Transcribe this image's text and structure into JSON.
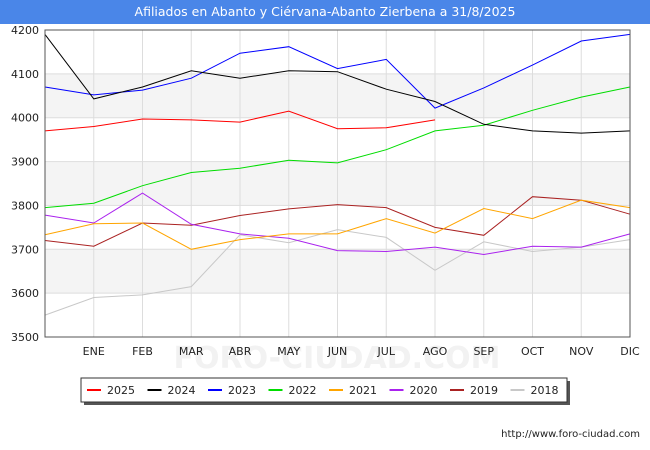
{
  "title": "Afiliados en Abanto y Ciérvana-Abanto Zierbena a 31/8/2025",
  "footer": "http://www.foro-ciudad.com",
  "watermark": "FORO-CIUDAD.COM",
  "chart_data": {
    "type": "line",
    "title": "Afiliados en Abanto y Ciérvana-Abanto Zierbena a 31/8/2025",
    "xlabel": "",
    "ylabel": "",
    "x_ticks": [
      "",
      "ENE",
      "FEB",
      "MAR",
      "ABR",
      "MAY",
      "JUN",
      "JUL",
      "AGO",
      "SEP",
      "OCT",
      "NOV",
      "DIC"
    ],
    "y_ticks": [
      3500,
      3600,
      3700,
      3800,
      3900,
      4000,
      4100,
      4200
    ],
    "ylim": [
      3500,
      4200
    ],
    "grid": true,
    "legend_position": "bottom",
    "series": [
      {
        "name": "2025",
        "color": "#ff0000",
        "values": [
          3970,
          3980,
          3997,
          3995,
          3990,
          4015,
          3975,
          3977,
          3995
        ]
      },
      {
        "name": "2024",
        "color": "#000000",
        "values": [
          4190,
          4043,
          4070,
          4107,
          4090,
          4107,
          4105,
          4065,
          4037,
          3985,
          3970,
          3965,
          3970
        ]
      },
      {
        "name": "2023",
        "color": "#0000ff",
        "values": [
          4070,
          4052,
          4063,
          4090,
          4147,
          4162,
          4112,
          4133,
          4022,
          4068,
          4120,
          4175,
          4190
        ]
      },
      {
        "name": "2022",
        "color": "#00dd00",
        "values": [
          3795,
          3805,
          3845,
          3875,
          3885,
          3903,
          3897,
          3927,
          3970,
          3983,
          4017,
          4047,
          4070
        ]
      },
      {
        "name": "2021",
        "color": "#ffa500",
        "values": [
          3733,
          3758,
          3760,
          3700,
          3722,
          3735,
          3735,
          3770,
          3737,
          3793,
          3770,
          3812,
          3795
        ]
      },
      {
        "name": "2020",
        "color": "#aa22ee",
        "values": [
          3778,
          3760,
          3828,
          3757,
          3735,
          3725,
          3697,
          3695,
          3705,
          3688,
          3707,
          3705,
          3735
        ]
      },
      {
        "name": "2019",
        "color": "#aa2222",
        "values": [
          3720,
          3707,
          3760,
          3755,
          3777,
          3792,
          3802,
          3795,
          3750,
          3732,
          3820,
          3812,
          3780
        ]
      },
      {
        "name": "2018",
        "color": "#c8c8c8",
        "values": [
          3550,
          3590,
          3596,
          3615,
          3733,
          3715,
          3745,
          3727,
          3652,
          3717,
          3695,
          3705,
          3722
        ]
      }
    ]
  }
}
